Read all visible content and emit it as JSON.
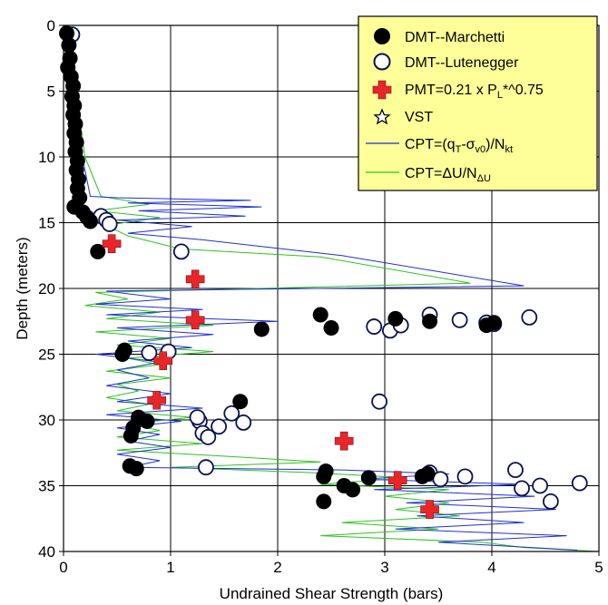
{
  "chart_data": {
    "type": "scatter",
    "xlabel": "Undrained Shear Strength (bars)",
    "ylabel": "Depth (meters)",
    "xlim": [
      0,
      5
    ],
    "ylim": [
      0,
      40
    ],
    "y_inverted": true,
    "x_ticks": [
      "0",
      "1",
      "2",
      "3",
      "4",
      "5"
    ],
    "y_ticks": [
      "0",
      "5",
      "10",
      "15",
      "20",
      "25",
      "30",
      "35",
      "40"
    ],
    "grid": true,
    "legend_position": "top-right",
    "legend": [
      {
        "key": "marchetti",
        "label": "DMT--Marchetti",
        "marker": "filled-circle"
      },
      {
        "key": "lutenegger",
        "label": "DMT--Lutenegger",
        "marker": "open-circle"
      },
      {
        "key": "pmt",
        "label": "PMT=0.21 x P",
        "sub": "L",
        "post": "*^0.75",
        "marker": "red-cross"
      },
      {
        "key": "vst",
        "label": "VST",
        "marker": "open-star"
      },
      {
        "key": "cpt_qt",
        "label": "CPT=(q",
        "sub1": "T",
        "mid1": "-σ",
        "sub2": "v0",
        "mid2": ")/N",
        "sub3": "kt",
        "marker": "blue-line"
      },
      {
        "key": "cpt_du",
        "label": "CPT=ΔU/N",
        "sub": "ΔU",
        "marker": "green-line"
      }
    ],
    "colors": {
      "background": "#ffffff",
      "legend_bg": "#ffff99",
      "grid": "#000000",
      "marchetti": "#000000",
      "lutenegger": "#0a1150",
      "pmt": "#e8262a",
      "cpt_qt": "#1f2fd6",
      "cpt_du": "#2fc21f"
    },
    "series": [
      {
        "name": "DMT--Marchetti",
        "points": [
          [
            0.03,
            0.6
          ],
          [
            0.05,
            1.5
          ],
          [
            0.06,
            2.5
          ],
          [
            0.04,
            3.2
          ],
          [
            0.07,
            3.9
          ],
          [
            0.09,
            4.6
          ],
          [
            0.08,
            5.4
          ],
          [
            0.1,
            6.1
          ],
          [
            0.09,
            6.8
          ],
          [
            0.11,
            7.5
          ],
          [
            0.1,
            8.2
          ],
          [
            0.12,
            8.9
          ],
          [
            0.11,
            9.6
          ],
          [
            0.13,
            10.3
          ],
          [
            0.12,
            11.0
          ],
          [
            0.14,
            11.7
          ],
          [
            0.13,
            12.4
          ],
          [
            0.15,
            13.1
          ],
          [
            0.1,
            13.8
          ],
          [
            0.18,
            14.2
          ],
          [
            0.22,
            14.6
          ],
          [
            0.25,
            14.9
          ],
          [
            0.32,
            17.2
          ],
          [
            1.85,
            23.1
          ],
          [
            2.4,
            22.0
          ],
          [
            2.5,
            23.0
          ],
          [
            3.1,
            22.3
          ],
          [
            3.42,
            22.5
          ],
          [
            3.95,
            22.8
          ],
          [
            4.02,
            22.6
          ],
          [
            0.55,
            25.0
          ],
          [
            0.57,
            24.7
          ],
          [
            1.65,
            28.6
          ],
          [
            0.7,
            29.8
          ],
          [
            0.78,
            30.1
          ],
          [
            0.65,
            30.6
          ],
          [
            0.63,
            31.2
          ],
          [
            0.62,
            33.5
          ],
          [
            0.68,
            33.7
          ],
          [
            2.45,
            33.9
          ],
          [
            2.43,
            34.3
          ],
          [
            2.85,
            34.4
          ],
          [
            2.62,
            35.0
          ],
          [
            2.7,
            35.3
          ],
          [
            3.35,
            34.3
          ],
          [
            3.4,
            34.1
          ],
          [
            2.43,
            36.2
          ]
        ]
      },
      {
        "name": "DMT--Lutenegger",
        "points": [
          [
            0.08,
            0.7
          ],
          [
            0.35,
            14.5
          ],
          [
            0.4,
            14.8
          ],
          [
            0.43,
            15.1
          ],
          [
            1.1,
            17.2
          ],
          [
            2.9,
            22.9
          ],
          [
            3.05,
            23.2
          ],
          [
            3.15,
            22.8
          ],
          [
            3.42,
            22.0
          ],
          [
            3.7,
            22.4
          ],
          [
            3.95,
            22.6
          ],
          [
            4.02,
            22.7
          ],
          [
            4.35,
            22.2
          ],
          [
            0.98,
            24.8
          ],
          [
            0.8,
            24.9
          ],
          [
            2.95,
            28.6
          ],
          [
            1.57,
            29.5
          ],
          [
            1.68,
            30.2
          ],
          [
            1.45,
            30.5
          ],
          [
            1.27,
            30.1
          ],
          [
            1.3,
            31.0
          ],
          [
            1.35,
            31.3
          ],
          [
            1.25,
            29.8
          ],
          [
            1.33,
            33.6
          ],
          [
            3.42,
            34.0
          ],
          [
            3.52,
            34.5
          ],
          [
            3.75,
            34.3
          ],
          [
            4.22,
            33.8
          ],
          [
            4.28,
            35.2
          ],
          [
            4.45,
            35.0
          ],
          [
            4.55,
            36.2
          ],
          [
            4.82,
            34.8
          ]
        ]
      },
      {
        "name": "PMT=0.21 x PL*^0.75",
        "points": [
          [
            0.45,
            16.6
          ],
          [
            1.23,
            19.3
          ],
          [
            1.23,
            22.4
          ],
          [
            0.93,
            25.5
          ],
          [
            0.87,
            28.5
          ],
          [
            2.62,
            31.6
          ],
          [
            3.12,
            34.6
          ],
          [
            3.42,
            36.8
          ]
        ]
      },
      {
        "name": "VST",
        "points": []
      },
      {
        "name": "CPT=(qT-σv0)/Nkt",
        "points": [
          [
            0.05,
            1.0
          ],
          [
            0.08,
            3.0
          ],
          [
            0.1,
            5.0
          ],
          [
            0.12,
            7.0
          ],
          [
            0.15,
            9.0
          ],
          [
            0.2,
            11.0
          ],
          [
            0.25,
            13.0
          ],
          [
            0.5,
            13.1
          ],
          [
            1.75,
            13.3
          ],
          [
            0.6,
            13.5
          ],
          [
            1.85,
            13.8
          ],
          [
            0.7,
            14.1
          ],
          [
            1.7,
            14.5
          ],
          [
            0.5,
            14.8
          ],
          [
            1.2,
            15.3
          ],
          [
            0.6,
            15.8
          ],
          [
            1.3,
            16.3
          ],
          [
            2.6,
            17.5
          ],
          [
            4.3,
            19.8
          ],
          [
            0.4,
            20.2
          ],
          [
            1.0,
            20.8
          ],
          [
            0.3,
            21.2
          ],
          [
            1.3,
            21.6
          ],
          [
            0.4,
            22.0
          ],
          [
            2.0,
            22.5
          ],
          [
            0.5,
            23.0
          ],
          [
            1.4,
            23.5
          ],
          [
            0.6,
            24.0
          ],
          [
            1.2,
            24.5
          ],
          [
            0.3,
            25.0
          ],
          [
            0.9,
            25.6
          ],
          [
            0.5,
            26.2
          ],
          [
            0.8,
            26.8
          ],
          [
            0.4,
            27.4
          ],
          [
            1.0,
            28.0
          ],
          [
            0.5,
            28.6
          ],
          [
            1.3,
            29.1
          ],
          [
            0.4,
            29.6
          ],
          [
            1.1,
            30.1
          ],
          [
            0.5,
            30.6
          ],
          [
            0.9,
            31.1
          ],
          [
            0.6,
            31.6
          ],
          [
            1.0,
            32.1
          ],
          [
            0.5,
            32.6
          ],
          [
            0.9,
            33.1
          ],
          [
            0.6,
            33.6
          ],
          [
            2.6,
            33.8
          ],
          [
            3.6,
            34.1
          ],
          [
            2.8,
            34.5
          ],
          [
            4.3,
            34.9
          ],
          [
            2.9,
            35.3
          ],
          [
            4.4,
            35.8
          ],
          [
            3.2,
            36.3
          ],
          [
            4.6,
            36.8
          ],
          [
            3.3,
            37.3
          ],
          [
            4.3,
            37.8
          ],
          [
            3.1,
            38.3
          ],
          [
            4.7,
            38.8
          ],
          [
            3.5,
            39.3
          ],
          [
            4.8,
            39.9
          ]
        ]
      },
      {
        "name": "CPT=ΔU/NΔU",
        "points": [
          [
            0.05,
            1.0
          ],
          [
            0.1,
            4.0
          ],
          [
            0.15,
            7.0
          ],
          [
            0.2,
            10.0
          ],
          [
            0.35,
            13.0
          ],
          [
            0.8,
            13.6
          ],
          [
            0.3,
            14.1
          ],
          [
            0.9,
            14.6
          ],
          [
            0.4,
            15.2
          ],
          [
            0.6,
            16.0
          ],
          [
            1.1,
            17.0
          ],
          [
            2.4,
            17.6
          ],
          [
            3.8,
            19.6
          ],
          [
            0.3,
            20.3
          ],
          [
            0.6,
            20.8
          ],
          [
            0.2,
            21.3
          ],
          [
            0.9,
            21.8
          ],
          [
            0.4,
            22.3
          ],
          [
            1.4,
            22.8
          ],
          [
            0.3,
            23.3
          ],
          [
            1.0,
            23.8
          ],
          [
            0.5,
            24.3
          ],
          [
            1.4,
            24.8
          ],
          [
            0.6,
            25.3
          ],
          [
            0.9,
            25.8
          ],
          [
            0.4,
            26.3
          ],
          [
            1.0,
            26.8
          ],
          [
            0.5,
            27.3
          ],
          [
            0.7,
            27.8
          ],
          [
            0.4,
            28.3
          ],
          [
            0.8,
            28.8
          ],
          [
            0.5,
            29.3
          ],
          [
            1.2,
            29.8
          ],
          [
            0.6,
            30.3
          ],
          [
            0.9,
            30.8
          ],
          [
            0.5,
            31.3
          ],
          [
            1.3,
            31.8
          ],
          [
            0.5,
            32.3
          ],
          [
            1.6,
            32.8
          ],
          [
            2.4,
            33.2
          ],
          [
            1.0,
            33.6
          ],
          [
            2.3,
            34.0
          ],
          [
            3.2,
            34.4
          ],
          [
            2.4,
            34.9
          ],
          [
            3.6,
            35.3
          ],
          [
            3.0,
            35.8
          ],
          [
            3.6,
            36.3
          ],
          [
            3.1,
            36.8
          ],
          [
            3.7,
            37.3
          ],
          [
            2.6,
            37.8
          ],
          [
            3.5,
            38.3
          ],
          [
            2.4,
            38.8
          ],
          [
            3.9,
            39.3
          ],
          [
            4.3,
            39.7
          ],
          [
            5.0,
            40.0
          ]
        ]
      }
    ]
  }
}
